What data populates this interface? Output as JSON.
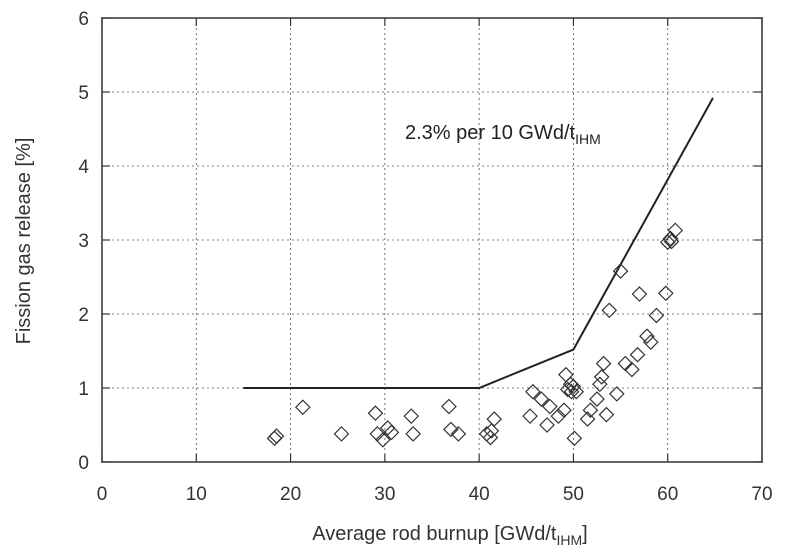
{
  "chart_data": {
    "type": "scatter",
    "title": "",
    "xlabel": {
      "main": "Average rod burnup  [GWd/t",
      "sub": "IHM",
      "end": "]"
    },
    "ylabel": "Fission gas release [%]",
    "xlim": [
      0,
      70
    ],
    "ylim": [
      0,
      6
    ],
    "xticks": [
      0,
      10,
      20,
      30,
      40,
      50,
      60,
      70
    ],
    "yticks": [
      0,
      1,
      2,
      3,
      4,
      5,
      6
    ],
    "grid": true,
    "grid_style": "dotted",
    "annotation": {
      "main": "2.3% per 10 GWd/t",
      "sub": "IHM"
    },
    "threshold_line": {
      "x": [
        15,
        40,
        50,
        64.8
      ],
      "y": [
        1.0,
        1.0,
        1.52,
        4.92
      ]
    },
    "points": {
      "marker": "diamond",
      "x": [
        18.3,
        18.5,
        21.3,
        25.4,
        29.0,
        29.2,
        29.8,
        30.3,
        30.7,
        32.8,
        33.0,
        36.8,
        37.0,
        37.8,
        40.8,
        41.2,
        41.3,
        41.6,
        45.4,
        45.7,
        46.6,
        47.2,
        47.5,
        48.4,
        49.0,
        49.2,
        49.4,
        49.7,
        49.8,
        50.0,
        50.1,
        50.3,
        51.5,
        51.8,
        52.5,
        52.8,
        53.0,
        53.2,
        53.5,
        53.8,
        54.6,
        55.0,
        55.5,
        56.2,
        56.8,
        57.0,
        57.8,
        58.2,
        58.8,
        59.8,
        60.0,
        60.3,
        60.4,
        60.8
      ],
      "y": [
        0.32,
        0.35,
        0.74,
        0.38,
        0.66,
        0.38,
        0.3,
        0.46,
        0.4,
        0.62,
        0.38,
        0.75,
        0.44,
        0.38,
        0.38,
        0.33,
        0.42,
        0.58,
        0.62,
        0.95,
        0.85,
        0.5,
        0.75,
        0.62,
        0.7,
        1.18,
        0.98,
        1.05,
        0.95,
        1.02,
        0.32,
        0.95,
        0.58,
        0.7,
        0.85,
        1.05,
        1.15,
        1.33,
        0.64,
        2.05,
        0.92,
        2.58,
        1.33,
        1.25,
        1.45,
        2.27,
        1.7,
        1.62,
        1.98,
        2.28,
        2.97,
        3.02,
        2.98,
        3.13
      ]
    }
  }
}
